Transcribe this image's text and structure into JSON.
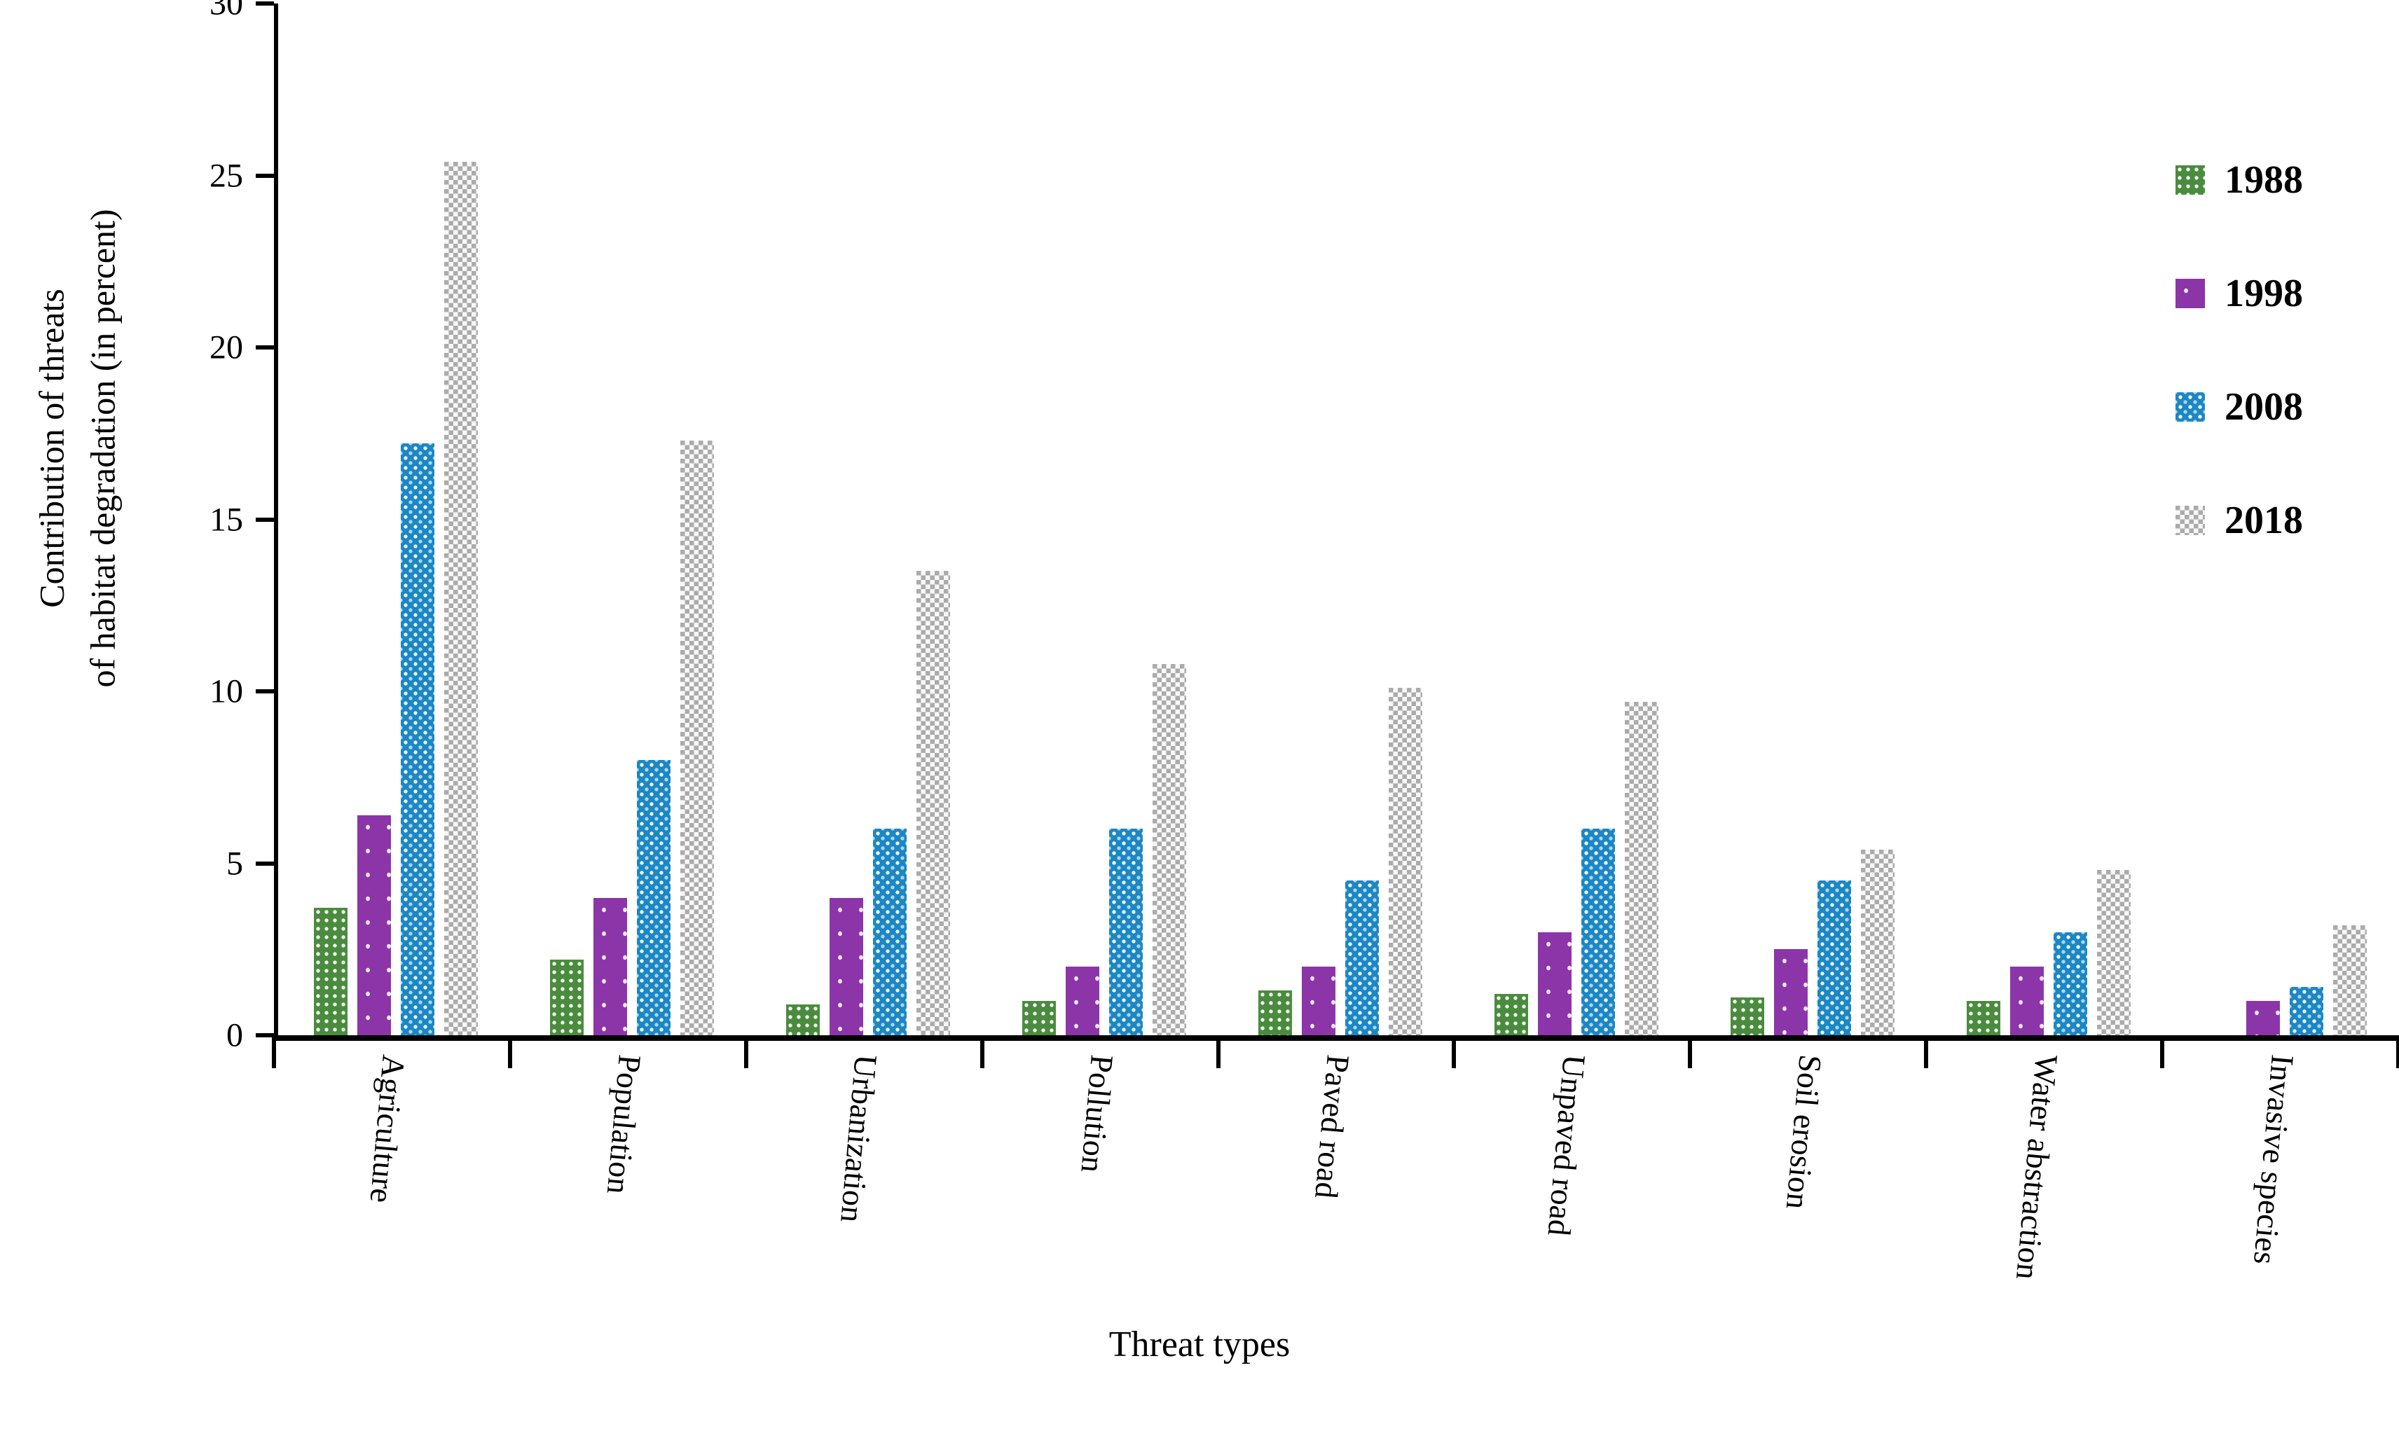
{
  "figure": {
    "xlabel": "Threat types",
    "ylabel_line1": "Contribution of threats",
    "ylabel_line2": "of habitat degradation (in percent)"
  },
  "legend": {
    "position": "upper right",
    "items": [
      "1988",
      "1998",
      "2008",
      "2018"
    ]
  },
  "colors": {
    "series_1988": "#4A8C3E",
    "series_1998": "#8B35A9",
    "series_2008": "#1B87C5",
    "series_2018": "#ABABAB",
    "axis": "#000000",
    "background": "#FFFFFF"
  },
  "chart_data": {
    "type": "bar",
    "title": "",
    "xlabel": "Threat types",
    "ylabel": "Contribution of threats of habitat degradation (in percent)",
    "categories": [
      "Agriculture",
      "Population",
      "Urbanization",
      "Pollution",
      "Paved road",
      "Unpaved road",
      "Soil erosion",
      "Water abstraction",
      "Invasive species"
    ],
    "series": [
      {
        "name": "1988",
        "color": "#4A8C3E",
        "values": [
          3.7,
          2.2,
          0.9,
          1.0,
          1.3,
          1.2,
          1.1,
          1.0,
          0
        ]
      },
      {
        "name": "1998",
        "color": "#8B35A9",
        "values": [
          6.4,
          4.0,
          4.0,
          2.0,
          2.0,
          3.0,
          2.5,
          2.0,
          1.0
        ]
      },
      {
        "name": "2008",
        "color": "#1B87C5",
        "values": [
          17.2,
          8.0,
          6.0,
          6.0,
          4.5,
          6.0,
          4.5,
          3.0,
          1.4
        ]
      },
      {
        "name": "2018",
        "color": "#ABABAB",
        "values": [
          25.4,
          17.3,
          13.5,
          10.8,
          10.1,
          9.7,
          5.4,
          4.8,
          3.2
        ]
      }
    ],
    "ylim": [
      0,
      30
    ],
    "yticks": [
      0,
      5,
      10,
      15,
      20,
      25,
      30
    ],
    "grid": "off",
    "legend_position": "upper right",
    "bar_patterns": [
      "dotted-grid",
      "sparse-dots",
      "dotted-checker",
      "checkerboard"
    ]
  }
}
